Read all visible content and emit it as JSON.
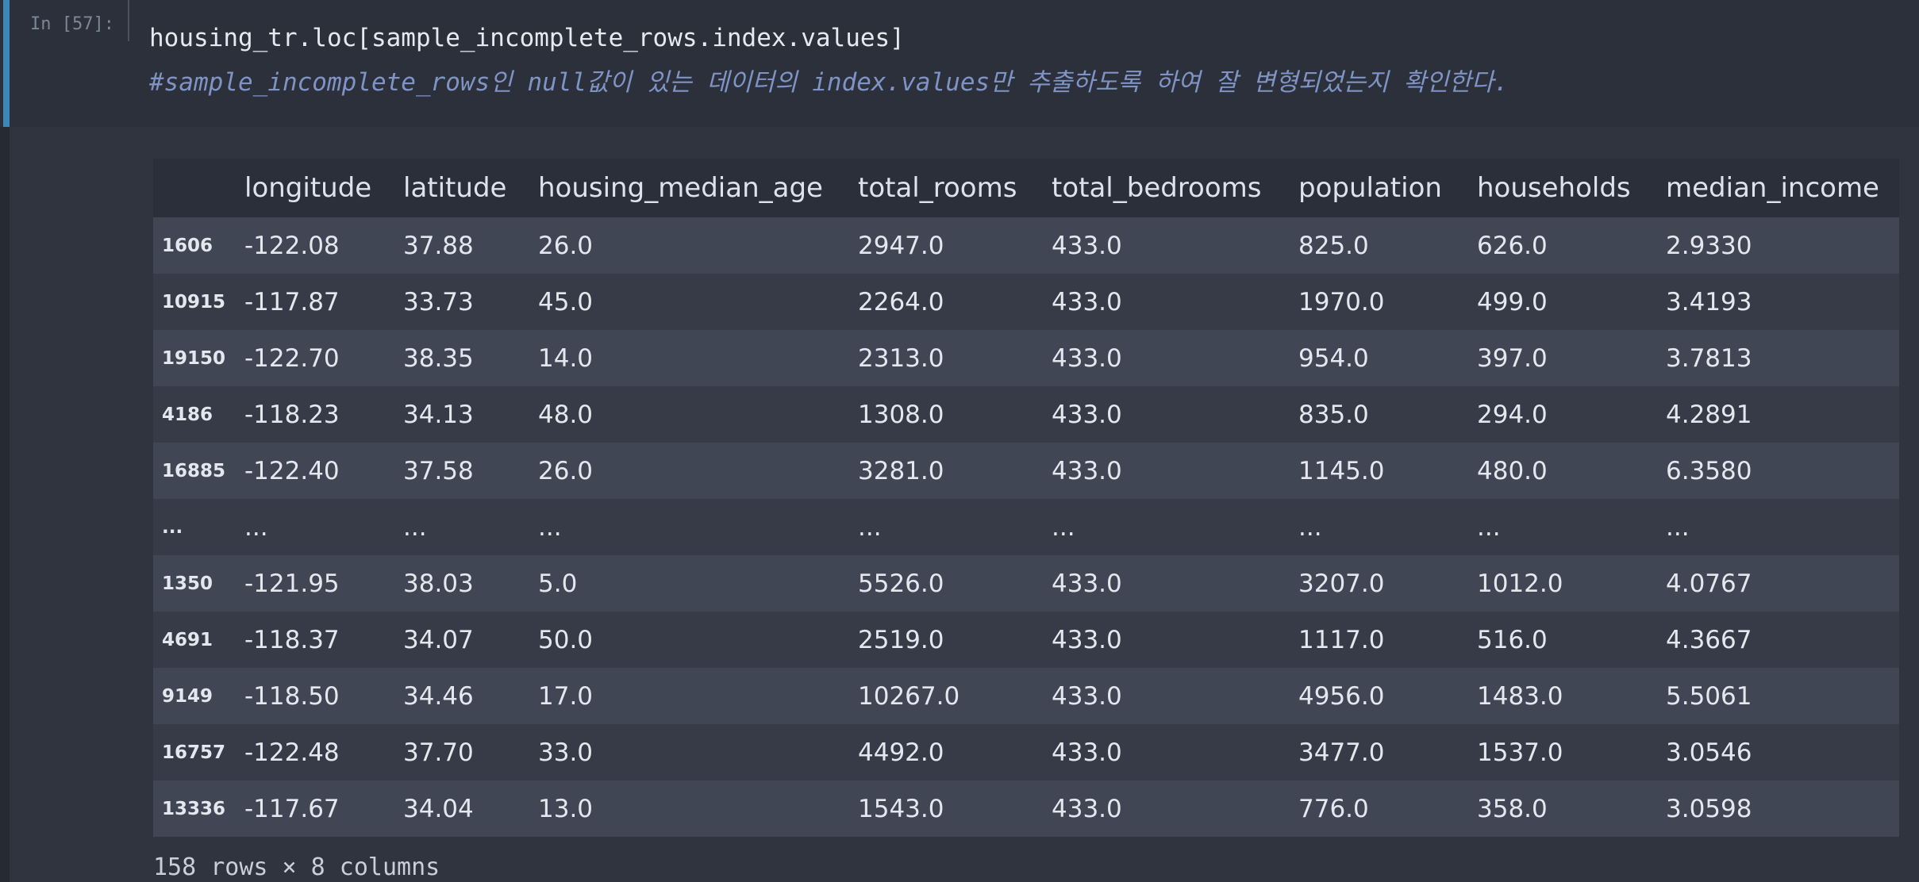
{
  "prompt": "In [57]:",
  "code": [
    "housing_tr.loc[sample_incomplete_rows.index.values]",
    "#sample_incomplete_rows인 null값이 있는 데이터의 index.values만 추출하도록 하여 잘 변형되었는지 확인한다."
  ],
  "table": {
    "columns": [
      "longitude",
      "latitude",
      "housing_median_age",
      "total_rooms",
      "total_bedrooms",
      "population",
      "households",
      "median_income"
    ],
    "rows": [
      {
        "index": "1606",
        "cells": [
          "-122.08",
          "37.88",
          "26.0",
          "2947.0",
          "433.0",
          "825.0",
          "626.0",
          "2.9330"
        ]
      },
      {
        "index": "10915",
        "cells": [
          "-117.87",
          "33.73",
          "45.0",
          "2264.0",
          "433.0",
          "1970.0",
          "499.0",
          "3.4193"
        ]
      },
      {
        "index": "19150",
        "cells": [
          "-122.70",
          "38.35",
          "14.0",
          "2313.0",
          "433.0",
          "954.0",
          "397.0",
          "3.7813"
        ]
      },
      {
        "index": "4186",
        "cells": [
          "-118.23",
          "34.13",
          "48.0",
          "1308.0",
          "433.0",
          "835.0",
          "294.0",
          "4.2891"
        ]
      },
      {
        "index": "16885",
        "cells": [
          "-122.40",
          "37.58",
          "26.0",
          "3281.0",
          "433.0",
          "1145.0",
          "480.0",
          "6.3580"
        ]
      },
      {
        "index": "...",
        "cells": [
          "...",
          "...",
          "...",
          "...",
          "...",
          "...",
          "...",
          "..."
        ]
      },
      {
        "index": "1350",
        "cells": [
          "-121.95",
          "38.03",
          "5.0",
          "5526.0",
          "433.0",
          "3207.0",
          "1012.0",
          "4.0767"
        ]
      },
      {
        "index": "4691",
        "cells": [
          "-118.37",
          "34.07",
          "50.0",
          "2519.0",
          "433.0",
          "1117.0",
          "516.0",
          "4.3667"
        ]
      },
      {
        "index": "9149",
        "cells": [
          "-118.50",
          "34.46",
          "17.0",
          "10267.0",
          "433.0",
          "4956.0",
          "1483.0",
          "5.5061"
        ]
      },
      {
        "index": "16757",
        "cells": [
          "-122.48",
          "37.70",
          "33.0",
          "4492.0",
          "433.0",
          "3477.0",
          "1537.0",
          "3.0546"
        ]
      },
      {
        "index": "13336",
        "cells": [
          "-117.67",
          "34.04",
          "13.0",
          "1543.0",
          "433.0",
          "776.0",
          "358.0",
          "3.0598"
        ]
      }
    ]
  },
  "footer": "158 rows × 8 columns"
}
